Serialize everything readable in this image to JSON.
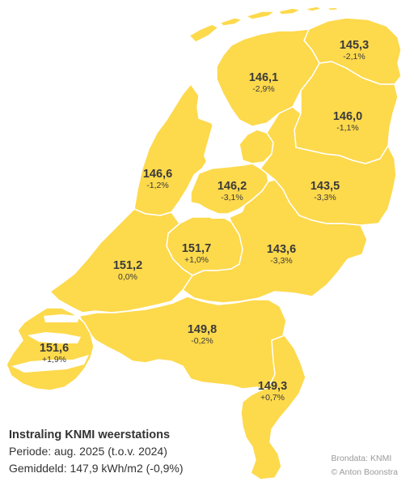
{
  "title": "Instraling KNMI weerstations",
  "period_line": "Periode: aug. 2025 (t.o.v. 2024)",
  "average_line": "Gemiddeld: 147,9 kWh/m2 (-0,9%)",
  "source": "Brondata: KNMI",
  "author": "© Anton Boonstra",
  "fill_color": "#FDD94C",
  "regions": [
    {
      "id": "groningen",
      "value": "145,3",
      "change": "-2,1%"
    },
    {
      "id": "friesland",
      "value": "146,1",
      "change": "-2,9%"
    },
    {
      "id": "drenthe",
      "value": "146,0",
      "change": "-1,1%"
    },
    {
      "id": "noord-holland",
      "value": "146,6",
      "change": "-1,2%"
    },
    {
      "id": "flevoland",
      "value": "146,2",
      "change": "-3,1%"
    },
    {
      "id": "overijssel",
      "value": "143,5",
      "change": "-3,3%"
    },
    {
      "id": "utrecht",
      "value": "151,7",
      "change": "+1,0%"
    },
    {
      "id": "zuid-holland",
      "value": "151,2",
      "change": "0,0%"
    },
    {
      "id": "gelderland",
      "value": "143,6",
      "change": "-3,3%"
    },
    {
      "id": "noord-brabant",
      "value": "149,8",
      "change": "-0,2%"
    },
    {
      "id": "zeeland",
      "value": "151,6",
      "change": "+1,9%"
    },
    {
      "id": "limburg",
      "value": "149,3",
      "change": "+0,7%"
    }
  ]
}
